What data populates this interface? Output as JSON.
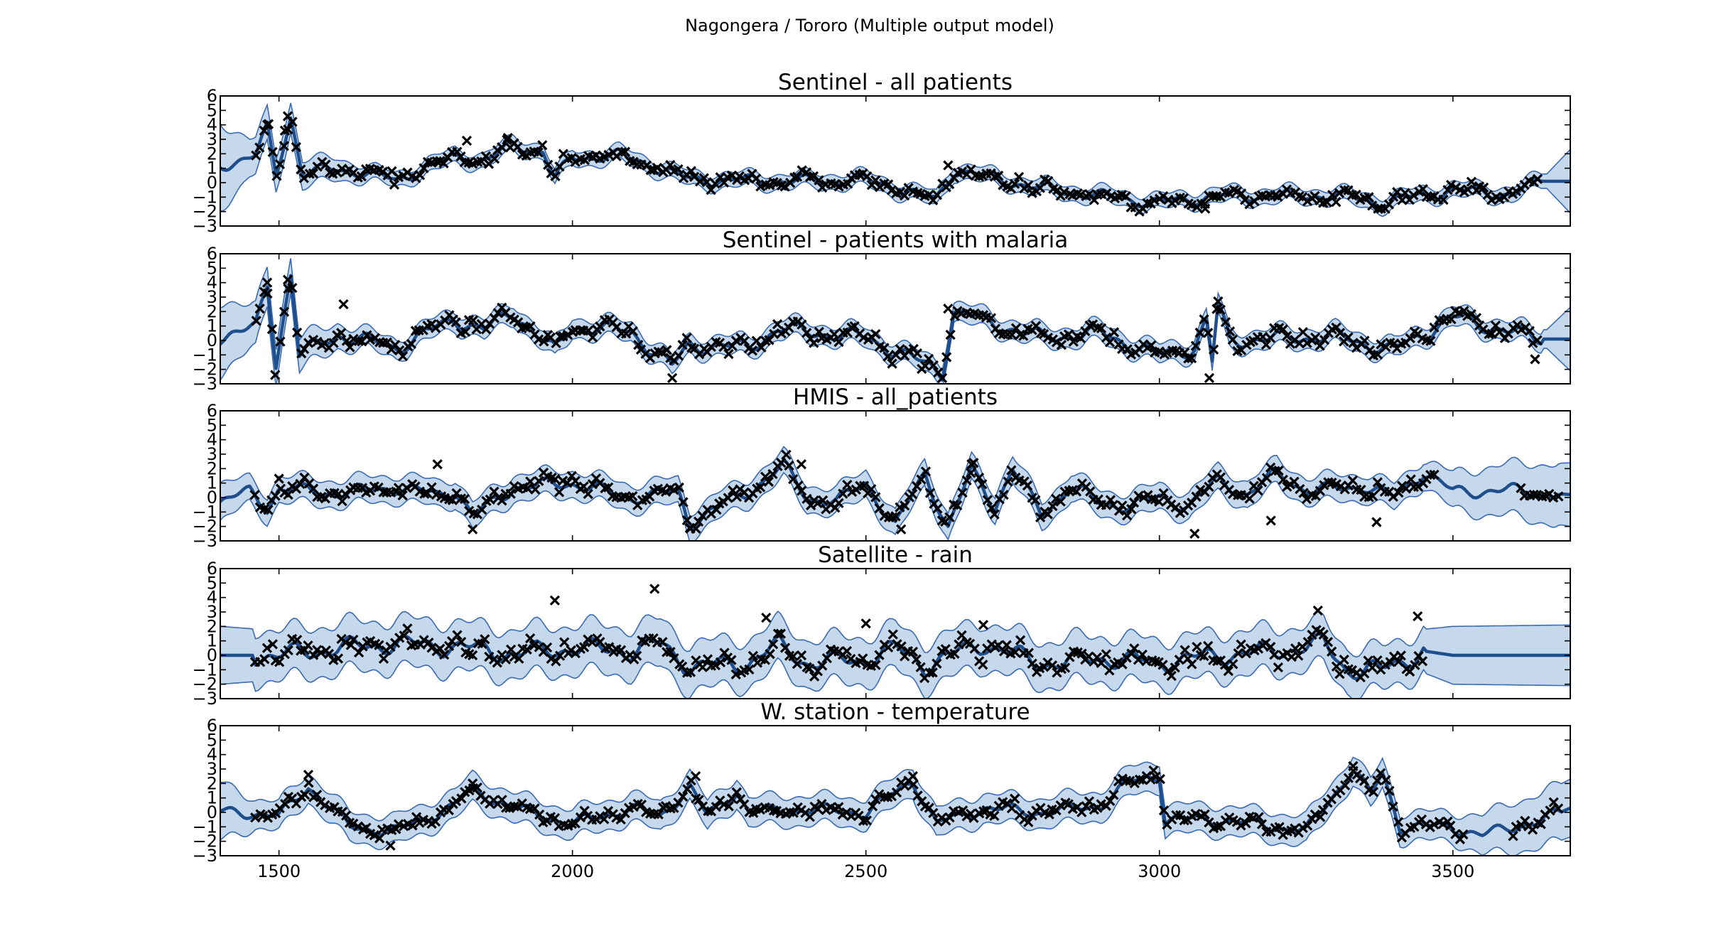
{
  "figure": {
    "suptitle": "Nagongera / Tororo (Multiple output model)"
  },
  "style": {
    "mean_color": "#1f4e8c",
    "band_fill": "#c5d8ec",
    "band_edge": "#3b6bb0",
    "marker_color": "#000000",
    "marker": "x",
    "grid": false
  },
  "chart_data": [
    {
      "type": "line",
      "title": "Sentinel - all patients",
      "xlim": [
        1400,
        3700
      ],
      "ylim": [
        -3,
        6
      ],
      "yticks": [
        -3,
        -2,
        -1,
        0,
        1,
        2,
        3,
        4,
        5,
        6
      ],
      "xticks": [
        1500,
        2000,
        2500,
        3000,
        3500
      ],
      "show_xtick_labels": false,
      "obs_end": 3650,
      "amp": 0.55,
      "trend": [
        [
          1400,
          1.2
        ],
        [
          1460,
          1.8
        ],
        [
          1480,
          3.8
        ],
        [
          1495,
          0.6
        ],
        [
          1520,
          4.6
        ],
        [
          1540,
          0.6
        ],
        [
          1600,
          1.0
        ],
        [
          1700,
          0.2
        ],
        [
          1800,
          1.8
        ],
        [
          1850,
          1.5
        ],
        [
          1900,
          2.6
        ],
        [
          1950,
          2.2
        ],
        [
          1970,
          0.3
        ],
        [
          2000,
          1.7
        ],
        [
          2080,
          1.9
        ],
        [
          2150,
          1.0
        ],
        [
          2200,
          0.2
        ],
        [
          2400,
          0.1
        ],
        [
          2500,
          0.2
        ],
        [
          2620,
          -1.2
        ],
        [
          2650,
          0.9
        ],
        [
          2800,
          -0.4
        ],
        [
          3000,
          -1.4
        ],
        [
          3100,
          -0.9
        ],
        [
          3300,
          -0.9
        ],
        [
          3380,
          -1.4
        ],
        [
          3500,
          -0.5
        ],
        [
          3600,
          -0.8
        ],
        [
          3650,
          0.1
        ],
        [
          3700,
          0.1
        ]
      ],
      "noise": 0.45,
      "spikes": [
        [
          1480,
          4.0
        ],
        [
          1515,
          4.6
        ],
        [
          1510,
          3.6
        ],
        [
          1820,
          2.9
        ],
        [
          1890,
          3.1
        ],
        [
          2640,
          1.2
        ],
        [
          3078,
          -1.8
        ]
      ],
      "band_open": [
        [
          1400,
          3.0
        ],
        [
          1450,
          1.3
        ],
        [
          1660,
          0.5
        ],
        [
          3660,
          0.5
        ],
        [
          3700,
          2.2
        ]
      ]
    },
    {
      "type": "line",
      "title": "Sentinel - patients with malaria",
      "xlim": [
        1400,
        3700
      ],
      "ylim": [
        -3,
        6
      ],
      "yticks": [
        -3,
        -2,
        -1,
        0,
        1,
        2,
        3,
        4,
        5,
        6
      ],
      "xticks": [
        1500,
        2000,
        2500,
        3000,
        3500
      ],
      "show_xtick_labels": false,
      "obs_end": 3650,
      "amp": 0.7,
      "trend": [
        [
          1400,
          0.3
        ],
        [
          1460,
          0.8
        ],
        [
          1480,
          3.9
        ],
        [
          1495,
          -1.5
        ],
        [
          1520,
          4.6
        ],
        [
          1535,
          -1.0
        ],
        [
          1600,
          0.4
        ],
        [
          1700,
          -0.5
        ],
        [
          1800,
          1.5
        ],
        [
          1850,
          0.7
        ],
        [
          1900,
          2.0
        ],
        [
          1970,
          -0.8
        ],
        [
          2000,
          1.0
        ],
        [
          2100,
          0.6
        ],
        [
          2170,
          -1.8
        ],
        [
          2200,
          -0.3
        ],
        [
          2300,
          -0.5
        ],
        [
          2350,
          0.8
        ],
        [
          2500,
          0.2
        ],
        [
          2630,
          -2.2
        ],
        [
          2650,
          2.0
        ],
        [
          2800,
          0.2
        ],
        [
          2900,
          0.5
        ],
        [
          3000,
          -1.0
        ],
        [
          3060,
          -0.5
        ],
        [
          3080,
          1.4
        ],
        [
          3090,
          -1.5
        ],
        [
          3100,
          2.4
        ],
        [
          3120,
          0.0
        ],
        [
          3300,
          0.3
        ],
        [
          3400,
          -0.7
        ],
        [
          3500,
          1.6
        ],
        [
          3600,
          0.6
        ],
        [
          3650,
          0.1
        ],
        [
          3700,
          0.1
        ]
      ],
      "noise": 0.55,
      "spikes": [
        [
          1480,
          4.0
        ],
        [
          1515,
          4.2
        ],
        [
          1610,
          2.5
        ],
        [
          2170,
          -2.6
        ],
        [
          2640,
          2.2
        ],
        [
          3085,
          -2.6
        ],
        [
          3100,
          2.7
        ],
        [
          3640,
          -1.3
        ]
      ],
      "band_open": [
        [
          1400,
          2.5
        ],
        [
          1450,
          1.5
        ],
        [
          1650,
          0.65
        ],
        [
          3660,
          0.65
        ],
        [
          3700,
          2.2
        ]
      ]
    },
    {
      "type": "line",
      "title": "HMIS - all_patients",
      "xlim": [
        1400,
        3700
      ],
      "ylim": [
        -3,
        6
      ],
      "yticks": [
        -3,
        -2,
        -1,
        0,
        1,
        2,
        3,
        4,
        5,
        6
      ],
      "xticks": [
        1500,
        2000,
        2500,
        3000,
        3500
      ],
      "show_xtick_labels": false,
      "obs_end": 3680,
      "amp": 0.6,
      "trend": [
        [
          1400,
          -0.3
        ],
        [
          1450,
          0.4
        ],
        [
          1480,
          -0.7
        ],
        [
          1500,
          0.6
        ],
        [
          1600,
          0.3
        ],
        [
          1700,
          0.7
        ],
        [
          1770,
          0.2
        ],
        [
          1800,
          0.5
        ],
        [
          1830,
          -1.3
        ],
        [
          1900,
          0.7
        ],
        [
          2000,
          1.0
        ],
        [
          2100,
          0.0
        ],
        [
          2180,
          0.4
        ],
        [
          2200,
          -1.8
        ],
        [
          2250,
          -0.6
        ],
        [
          2300,
          0.4
        ],
        [
          2360,
          2.2
        ],
        [
          2400,
          0.0
        ],
        [
          2450,
          -0.3
        ],
        [
          2500,
          1.0
        ],
        [
          2550,
          -2.0
        ],
        [
          2600,
          1.7
        ],
        [
          2640,
          -2.1
        ],
        [
          2680,
          1.9
        ],
        [
          2720,
          -0.6
        ],
        [
          2750,
          2.0
        ],
        [
          2800,
          -1.2
        ],
        [
          2850,
          0.8
        ],
        [
          2900,
          -0.4
        ],
        [
          2950,
          -0.6
        ],
        [
          3000,
          0.0
        ],
        [
          3050,
          -0.6
        ],
        [
          3100,
          1.2
        ],
        [
          3150,
          0.2
        ],
        [
          3200,
          1.7
        ],
        [
          3250,
          0.5
        ],
        [
          3300,
          0.6
        ],
        [
          3350,
          0.8
        ],
        [
          3400,
          0.0
        ],
        [
          3450,
          1.8
        ],
        [
          3500,
          0.4
        ],
        [
          3600,
          0.5
        ],
        [
          3700,
          0.2
        ]
      ],
      "noise": 0.5,
      "spikes": [
        [
          1500,
          1.3
        ],
        [
          1770,
          2.3
        ],
        [
          1830,
          -2.2
        ],
        [
          2200,
          -2.1
        ],
        [
          2390,
          2.3
        ],
        [
          2560,
          -2.2
        ],
        [
          2680,
          2.3
        ],
        [
          3060,
          -2.5
        ],
        [
          3370,
          -1.7
        ],
        [
          3190,
          -1.6
        ]
      ],
      "band_open": [
        [
          1400,
          1.3
        ],
        [
          1450,
          0.9
        ],
        [
          3450,
          0.9
        ],
        [
          3550,
          1.6
        ],
        [
          3700,
          2.2
        ]
      ],
      "gaps": [
        [
          3470,
          3610
        ]
      ]
    },
    {
      "type": "line",
      "title": "Satellite - rain",
      "xlim": [
        1400,
        3700
      ],
      "ylim": [
        -3,
        6
      ],
      "yticks": [
        -3,
        -2,
        -1,
        0,
        1,
        2,
        3,
        4,
        5,
        6
      ],
      "xticks": [
        1500,
        2000,
        2500,
        3000,
        3500
      ],
      "show_xtick_labels": false,
      "obs_end": 3450,
      "obs_start": 1460,
      "amp": 0.9,
      "trend": [
        [
          1400,
          0.0
        ],
        [
          1500,
          0.0
        ],
        [
          1600,
          0.5
        ],
        [
          1700,
          0.8
        ],
        [
          1800,
          0.6
        ],
        [
          1900,
          0.1
        ],
        [
          2000,
          0.5
        ],
        [
          2100,
          0.3
        ],
        [
          2150,
          0.8
        ],
        [
          2200,
          -0.8
        ],
        [
          2300,
          -0.5
        ],
        [
          2350,
          0.7
        ],
        [
          2400,
          -0.5
        ],
        [
          2500,
          -0.3
        ],
        [
          2550,
          0.5
        ],
        [
          2600,
          -0.7
        ],
        [
          2700,
          0.8
        ],
        [
          2800,
          -0.6
        ],
        [
          2900,
          -0.2
        ],
        [
          3000,
          -0.5
        ],
        [
          3100,
          0.0
        ],
        [
          3200,
          0.3
        ],
        [
          3280,
          0.8
        ],
        [
          3320,
          -1.0
        ],
        [
          3380,
          -1.0
        ],
        [
          3450,
          0.3
        ],
        [
          3500,
          0.0
        ],
        [
          3700,
          0.0
        ]
      ],
      "noise": 0.75,
      "spikes": [
        [
          1970,
          3.8
        ],
        [
          2140,
          4.6
        ],
        [
          2330,
          2.6
        ],
        [
          2500,
          2.2
        ],
        [
          2700,
          2.1
        ],
        [
          3270,
          3.1
        ],
        [
          3440,
          2.7
        ]
      ],
      "band_open": [
        [
          1400,
          2.0
        ],
        [
          1500,
          1.7
        ],
        [
          3450,
          1.5
        ],
        [
          3500,
          2.0
        ],
        [
          3700,
          2.1
        ]
      ]
    },
    {
      "type": "line",
      "title": "W. station - temperature",
      "xlim": [
        1400,
        3700
      ],
      "ylim": [
        -3,
        6
      ],
      "yticks": [
        -3,
        -2,
        -1,
        0,
        1,
        2,
        3,
        4,
        5,
        6
      ],
      "xticks": [
        1500,
        2000,
        2500,
        3000,
        3500
      ],
      "show_xtick_labels": true,
      "obs_end": 3680,
      "amp": 0.55,
      "trend": [
        [
          1400,
          0.0
        ],
        [
          1450,
          0.0
        ],
        [
          1500,
          -0.3
        ],
        [
          1550,
          1.8
        ],
        [
          1620,
          -1.0
        ],
        [
          1700,
          -1.3
        ],
        [
          1800,
          0.5
        ],
        [
          1830,
          1.6
        ],
        [
          1900,
          0.3
        ],
        [
          2000,
          -0.8
        ],
        [
          2100,
          0.3
        ],
        [
          2150,
          -0.3
        ],
        [
          2200,
          1.8
        ],
        [
          2230,
          -0.3
        ],
        [
          2280,
          1.5
        ],
        [
          2300,
          0.0
        ],
        [
          2400,
          0.2
        ],
        [
          2500,
          0.0
        ],
        [
          2580,
          2.2
        ],
        [
          2620,
          -0.8
        ],
        [
          2700,
          0.3
        ],
        [
          2800,
          0.0
        ],
        [
          2900,
          0.5
        ],
        [
          2950,
          2.1
        ],
        [
          3000,
          2.6
        ],
        [
          3010,
          -0.5
        ],
        [
          3100,
          -0.5
        ],
        [
          3200,
          -1.0
        ],
        [
          3250,
          -1.3
        ],
        [
          3330,
          3.0
        ],
        [
          3360,
          1.2
        ],
        [
          3380,
          2.7
        ],
        [
          3410,
          -1.0
        ],
        [
          3500,
          -1.0
        ],
        [
          3550,
          -1.6
        ],
        [
          3600,
          -1.0
        ],
        [
          3650,
          -0.6
        ],
        [
          3700,
          0.3
        ]
      ],
      "noise": 0.45,
      "spikes": [
        [
          1550,
          2.6
        ],
        [
          1690,
          -2.3
        ],
        [
          1830,
          2.0
        ],
        [
          2210,
          2.5
        ],
        [
          2580,
          2.5
        ],
        [
          2990,
          2.9
        ],
        [
          3330,
          3.2
        ]
      ],
      "band_open": [
        [
          1400,
          2.0
        ],
        [
          1460,
          1.0
        ],
        [
          3500,
          1.0
        ],
        [
          3600,
          1.7
        ],
        [
          3700,
          2.0
        ]
      ],
      "gaps": [
        [
          3520,
          3600
        ]
      ]
    }
  ]
}
